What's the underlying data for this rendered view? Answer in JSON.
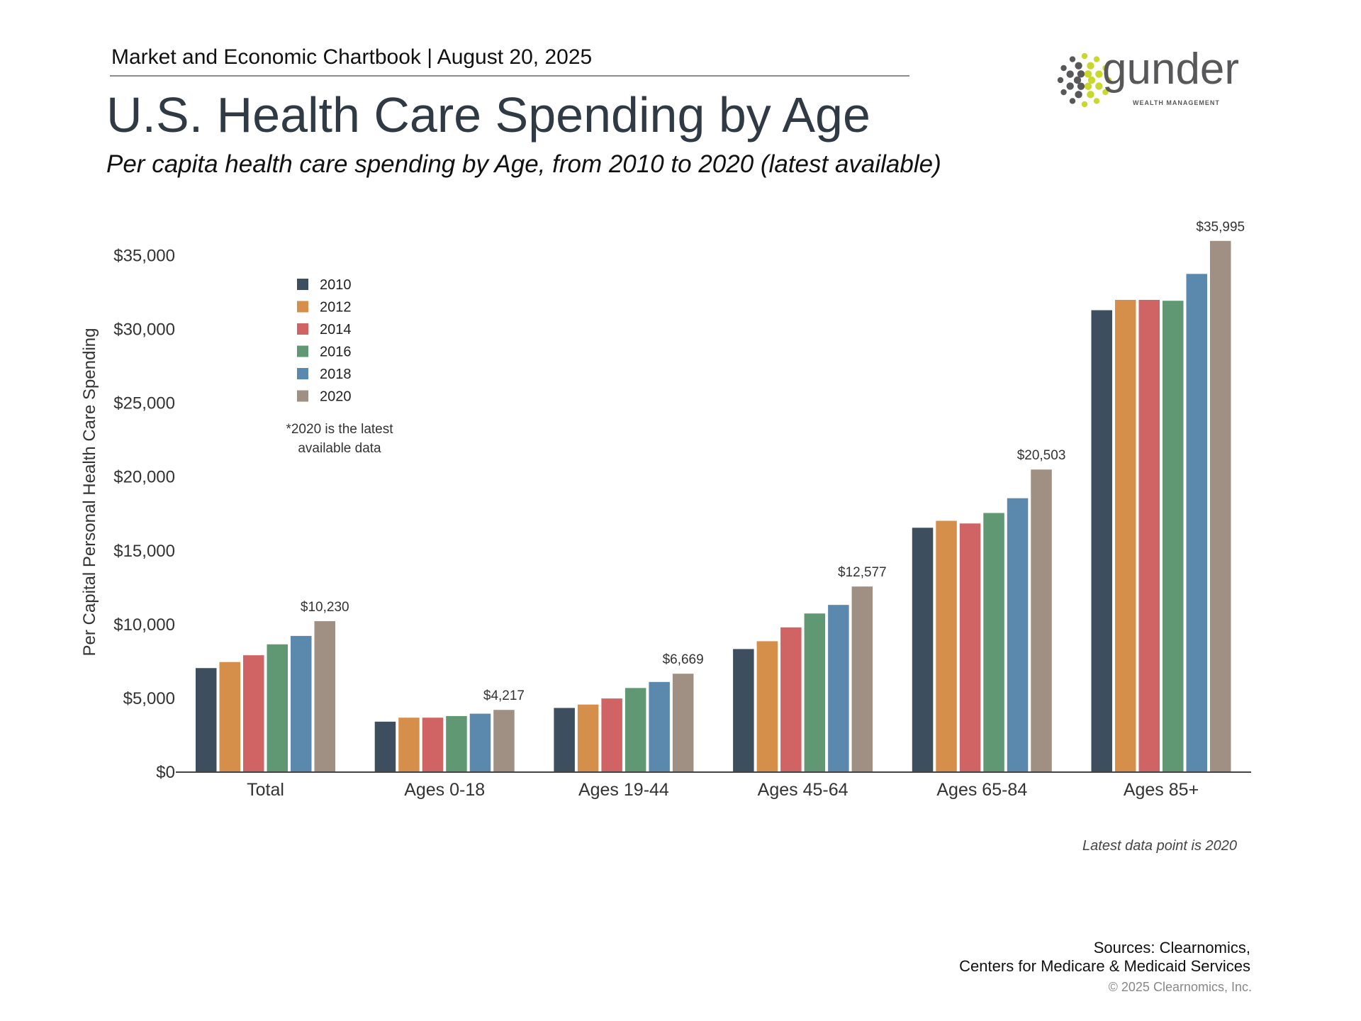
{
  "header": {
    "chartbook": "Market and Economic Chartbook | August 20, 2025",
    "title": "U.S. Health Care Spending by Age",
    "subtitle": "Per capita health care spending by Age, from 2010 to 2020 (latest available)"
  },
  "logo": {
    "name": "gunder",
    "tagline": "WEALTH MANAGEMENT",
    "colors": {
      "gray": "#58585a",
      "lime": "#c8d82c"
    }
  },
  "chart_data": {
    "type": "bar",
    "title": "U.S. Health Care Spending by Age",
    "ylabel": "Per Capital Personal Health Care Spending",
    "xlabel": "",
    "ylim": [
      0,
      35000
    ],
    "yticks": [
      0,
      5000,
      10000,
      15000,
      20000,
      25000,
      30000,
      35000
    ],
    "ytick_labels": [
      "$0",
      "$5,000",
      "$10,000",
      "$15,000",
      "$20,000",
      "$25,000",
      "$30,000",
      "$35,000"
    ],
    "grid": false,
    "legend_position": "top-left",
    "categories": [
      "Total",
      "Ages 0-18",
      "Ages 19-44",
      "Ages 45-64",
      "Ages 65-84",
      "Ages 85+"
    ],
    "series": [
      {
        "name": "2010",
        "color": "#3d4f5e",
        "values": [
          7050,
          3420,
          4350,
          8340,
          16560,
          31300
        ]
      },
      {
        "name": "2012",
        "color": "#d68f4b",
        "values": [
          7460,
          3690,
          4580,
          8870,
          17030,
          32000
        ]
      },
      {
        "name": "2014",
        "color": "#d06464",
        "values": [
          7920,
          3690,
          4990,
          9810,
          16850,
          32000
        ]
      },
      {
        "name": "2016",
        "color": "#5f9873",
        "values": [
          8660,
          3800,
          5700,
          10750,
          17560,
          31940
        ]
      },
      {
        "name": "2018",
        "color": "#5b88ad",
        "values": [
          9230,
          3960,
          6110,
          11330,
          18560,
          33760
        ]
      },
      {
        "name": "2020",
        "color": "#a09083",
        "values": [
          10230,
          4217,
          6669,
          12577,
          20503,
          35995
        ]
      }
    ],
    "data_labels": [
      "$10,230",
      "$4,217",
      "$6,669",
      "$12,577",
      "$20,503",
      "$35,995"
    ],
    "legend_note": [
      "*2020 is the latest",
      "available data"
    ],
    "annotation": "Latest data point is 2020"
  },
  "footer": {
    "sources_line1": "Sources: Clearnomics,",
    "sources_line2": "Centers for Medicare & Medicaid Services",
    "copyright": "© 2025 Clearnomics, Inc."
  }
}
